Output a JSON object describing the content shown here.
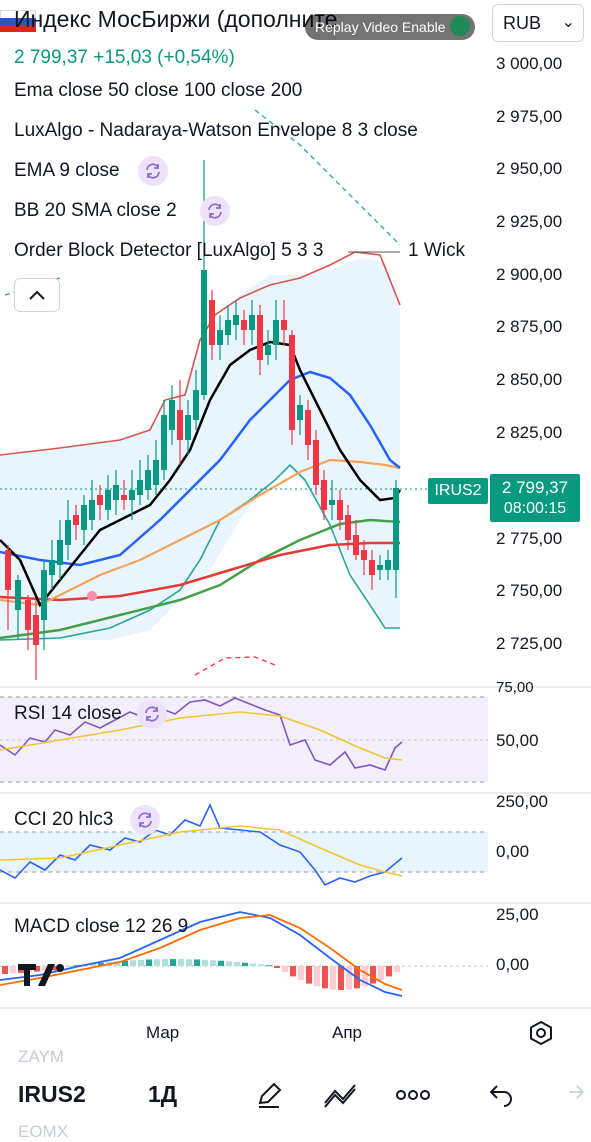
{
  "header": {
    "title": "Индекс МосБиржи (дополните",
    "replay_text": "Replay Video Enable",
    "currency": "RUB",
    "quote": "2 799,37  +15,03 (+0,54%)"
  },
  "indicators": [
    {
      "label": "Ema close 50 close 100 close 200",
      "sync": false
    },
    {
      "label": "LuxAlgo - Nadaraya-Watson Envelope 8 3 close",
      "sync": false
    },
    {
      "label": "EMA 9 close",
      "sync": true
    },
    {
      "label": "BB 20 SMA close 2",
      "sync": true
    },
    {
      "label": "Order Block Detector [LuxAlgo] 5 3 3",
      "sync": false
    }
  ],
  "order_block_suffix": "1 Wick",
  "price_axis": [
    "3 000,00",
    "2 975,00",
    "2 950,00",
    "2 925,00",
    "2 900,00",
    "2 875,00",
    "2 850,00",
    "2 825,00",
    "2 775,00",
    "2 750,00",
    "2 725,00"
  ],
  "symbol_tag": "IRUS2",
  "current_price": "2 799,37",
  "countdown": "08:00:15",
  "panes": {
    "rsi": {
      "label": "RSI 14 close",
      "axis": [
        "75,00",
        "50,00"
      ]
    },
    "cci": {
      "label": "CCI 20 hlc3",
      "axis": [
        "250,00",
        "0,00"
      ]
    },
    "macd": {
      "label": "MACD close 12 26 9",
      "axis": [
        "25,00",
        "0,00"
      ]
    }
  },
  "time_axis": [
    "Мар",
    "Апр"
  ],
  "bottom": {
    "symbol_above": "ZAYM",
    "symbol": "IRUS2",
    "symbol_below": "EOMX",
    "interval": "1Д"
  },
  "colors": {
    "up": "#089981",
    "down": "#f23645",
    "ema9": "#000000",
    "ema50": "#2962ff",
    "ema100": "#f7a35c",
    "ema200": "#4caf50",
    "bb_fill": "#e3f2fd",
    "accent_purple": "#ece3f8"
  }
}
